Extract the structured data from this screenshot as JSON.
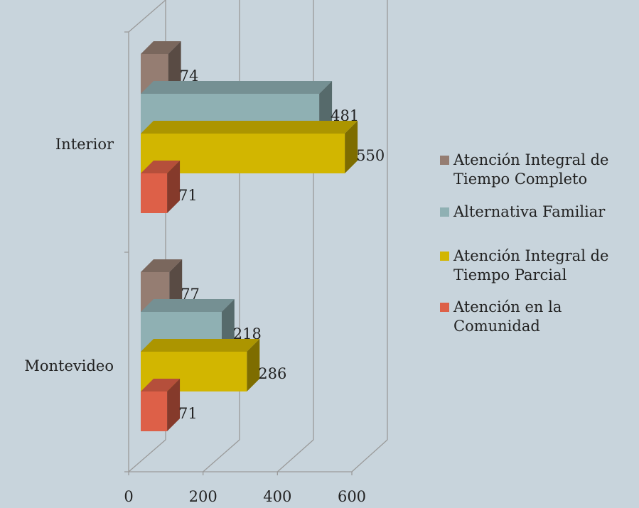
{
  "chart_data": {
    "type": "bar",
    "orientation": "horizontal",
    "style": "3d",
    "categories": [
      "Interior",
      "Montevideo"
    ],
    "series": [
      {
        "name": "Atención Integral de Tiempo Completo",
        "color": "#957d72",
        "values": [
          74,
          77
        ]
      },
      {
        "name": "Alternativa Familiar",
        "color": "#8fb0b3",
        "values": [
          481,
          218
        ]
      },
      {
        "name": "Atención Integral de Tiempo Parcial",
        "color": "#d2b600",
        "values": [
          550,
          286
        ]
      },
      {
        "name": "Atención en la Comunidad",
        "color": "#dd6048",
        "values": [
          71,
          71
        ]
      }
    ],
    "x_ticks": [
      "0",
      "200",
      "400",
      "600"
    ],
    "xlim": [
      0,
      600
    ],
    "grid": true,
    "legend_position": "right"
  }
}
